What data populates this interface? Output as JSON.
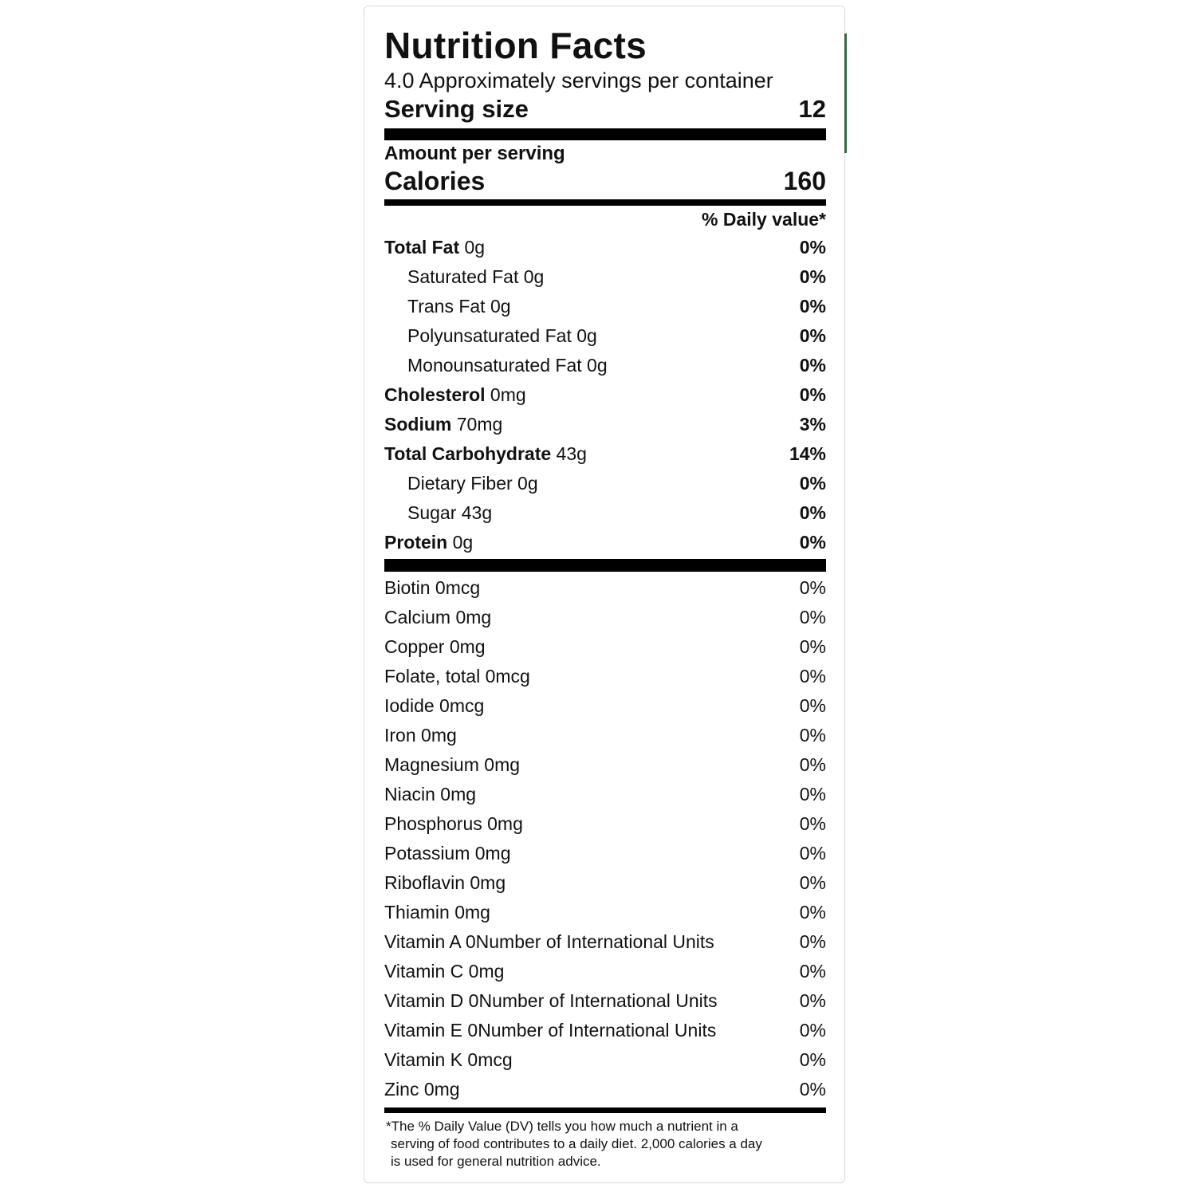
{
  "title": "Nutrition Facts",
  "servings_per_container": "4.0 Approximately servings per container",
  "serving_size_label": "Serving size",
  "serving_size_value": "12",
  "amount_per_serving": "Amount per serving",
  "calories_label": "Calories",
  "calories_value": "160",
  "daily_value_header": "% Daily value*",
  "nutrients": [
    {
      "name": "Total Fat",
      "amount": "0g",
      "dv": "0%"
    },
    {
      "name": "Saturated Fat",
      "amount": "0g",
      "dv": "0%"
    },
    {
      "name": "Trans Fat",
      "amount": "0g",
      "dv": "0%"
    },
    {
      "name": "Polyunsaturated Fat",
      "amount": "0g",
      "dv": "0%"
    },
    {
      "name": "Monounsaturated Fat",
      "amount": "0g",
      "dv": "0%"
    },
    {
      "name": "Cholesterol",
      "amount": "0mg",
      "dv": "0%"
    },
    {
      "name": "Sodium",
      "amount": "70mg",
      "dv": "3%"
    },
    {
      "name": "Total Carbohydrate",
      "amount": "43g",
      "dv": "14%"
    },
    {
      "name": "Dietary Fiber",
      "amount": "0g",
      "dv": "0%"
    },
    {
      "name": "Sugar",
      "amount": "43g",
      "dv": "0%"
    },
    {
      "name": "Protein",
      "amount": "0g",
      "dv": "0%"
    }
  ],
  "vitamins": [
    {
      "label": "Biotin 0mcg",
      "dv": "0%"
    },
    {
      "label": "Calcium 0mg",
      "dv": "0%"
    },
    {
      "label": "Copper 0mg",
      "dv": "0%"
    },
    {
      "label": "Folate, total 0mcg",
      "dv": "0%"
    },
    {
      "label": "Iodide 0mcg",
      "dv": "0%"
    },
    {
      "label": "Iron 0mg",
      "dv": "0%"
    },
    {
      "label": "Magnesium 0mg",
      "dv": "0%"
    },
    {
      "label": "Niacin 0mg",
      "dv": "0%"
    },
    {
      "label": "Phosphorus 0mg",
      "dv": "0%"
    },
    {
      "label": "Potassium 0mg",
      "dv": "0%"
    },
    {
      "label": "Riboflavin 0mg",
      "dv": "0%"
    },
    {
      "label": "Thiamin 0mg",
      "dv": "0%"
    },
    {
      "label": "Vitamin A 0Number of International Units",
      "dv": "0%"
    },
    {
      "label": "Vitamin C 0mg",
      "dv": "0%"
    },
    {
      "label": "Vitamin D 0Number of International Units",
      "dv": "0%"
    },
    {
      "label": "Vitamin E 0Number of International Units",
      "dv": "0%"
    },
    {
      "label": "Vitamin K 0mcg",
      "dv": "0%"
    },
    {
      "label": "Zinc 0mg",
      "dv": "0%"
    }
  ],
  "footnote": [
    "*The % Daily Value (DV) tells you how much a nutrient in a",
    "serving of food contributes to a daily diet. 2,000 calories a day",
    "is used for general nutrition advice."
  ]
}
